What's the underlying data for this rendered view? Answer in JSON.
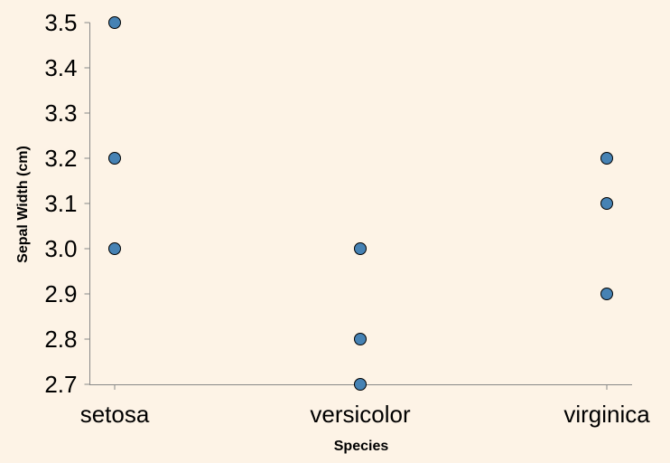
{
  "chart_data": {
    "type": "scatter",
    "title": "",
    "xlabel": "Species",
    "ylabel": "Sepal Width (cm)",
    "categories": [
      "setosa",
      "versicolor",
      "virginica"
    ],
    "ylim": [
      2.7,
      3.5
    ],
    "yticks": [
      "2.7",
      "2.8",
      "2.9",
      "3.0",
      "3.1",
      "3.2",
      "3.3",
      "3.4",
      "3.5"
    ],
    "grid": false,
    "point_color": "#4682b4",
    "background": "#fdf3e6",
    "points": [
      {
        "x": "setosa",
        "y": 3.5
      },
      {
        "x": "setosa",
        "y": 3.2
      },
      {
        "x": "setosa",
        "y": 3.0
      },
      {
        "x": "versicolor",
        "y": 3.0
      },
      {
        "x": "versicolor",
        "y": 2.8
      },
      {
        "x": "versicolor",
        "y": 2.7
      },
      {
        "x": "virginica",
        "y": 3.2
      },
      {
        "x": "virginica",
        "y": 3.1
      },
      {
        "x": "virginica",
        "y": 2.9
      }
    ]
  }
}
